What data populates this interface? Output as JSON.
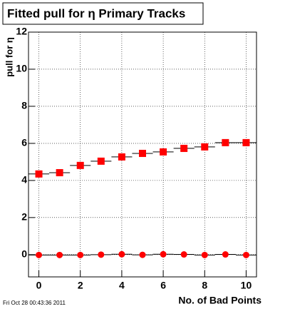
{
  "chart_data": {
    "type": "scatter",
    "title": "Fitted pull for  η Primary Tracks",
    "y_label": "pull for η",
    "x_label": "No. of Bad Points",
    "footer": "Fri Oct 28 00:43:36 2011",
    "x": [
      0,
      1,
      2,
      3,
      4,
      5,
      6,
      7,
      8,
      9,
      10
    ],
    "series": [
      {
        "color": "#ff0000",
        "marker": "square",
        "values": [
          4.35,
          4.42,
          4.81,
          5.04,
          5.27,
          5.46,
          5.54,
          5.73,
          5.81,
          6.04,
          6.04
        ]
      },
      {
        "color": "#ff0000",
        "marker": "circle",
        "values": [
          -0.02,
          -0.02,
          -0.02,
          0.0,
          0.02,
          -0.01,
          0.02,
          0.01,
          -0.02,
          0.01,
          -0.02
        ]
      }
    ],
    "xlim": [
      -0.5,
      10.5
    ],
    "xticks": [
      0,
      2,
      4,
      6,
      8,
      10
    ],
    "ylim": [
      -1.2,
      12
    ],
    "yticks": [
      0,
      2,
      4,
      6,
      8,
      10,
      12
    ],
    "grid": true
  }
}
